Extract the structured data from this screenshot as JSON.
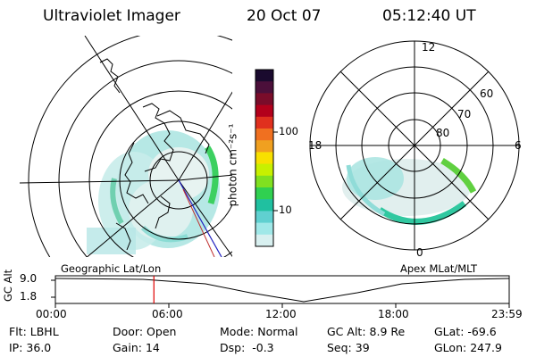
{
  "header": {
    "title": "Ultraviolet Imager",
    "date": "20 Oct 07",
    "time": "05:12:40 UT"
  },
  "colorbar": {
    "unit_label": "photon cm⁻²s⁻¹",
    "ticks": [
      "100",
      "10"
    ],
    "colors": [
      "#1a0a2e",
      "#4b0f3a",
      "#7a0c2a",
      "#b3001b",
      "#e0301e",
      "#f07020",
      "#f0a020",
      "#f8e000",
      "#c8f000",
      "#80e020",
      "#30d050",
      "#20c0a0",
      "#60d0d0",
      "#a0e8e8",
      "#d8f0f0"
    ]
  },
  "left_map": {
    "caption": "Geographic Lat/Lon",
    "ring_color": "#000000",
    "coast_color": "#000000",
    "track_color": "#2020c0"
  },
  "right_map": {
    "caption": "Apex MLat/MLT",
    "mlt_labels": {
      "top": "12",
      "left": "18",
      "right": "6",
      "bottom": "0"
    },
    "lat_labels": [
      "60",
      "70",
      "80"
    ]
  },
  "timeline": {
    "axis_label": "GC Alt",
    "y_ticks": [
      "9.0",
      "1.8"
    ],
    "x_ticks": [
      "00:00",
      "06:00",
      "12:00",
      "18:00",
      "23:59"
    ],
    "cursor_color": "#e00000",
    "cursor_time_hours": 5.21
  },
  "status": {
    "col1": [
      {
        "label": "Flt:",
        "value": "LBHL"
      },
      {
        "label": "IP:",
        "value": "36.0"
      }
    ],
    "col2": [
      {
        "label": "Door:",
        "value": "Open"
      },
      {
        "label": "Gain:",
        "value": "14"
      }
    ],
    "col3": [
      {
        "label": "Mode:",
        "value": "Normal"
      },
      {
        "label": "Dsp:",
        "value": "-0.3"
      }
    ],
    "col4": [
      {
        "label": "GC Alt:",
        "value": "8.9 Re"
      },
      {
        "label": "Seq:",
        "value": "39"
      }
    ],
    "col5": [
      {
        "label": "GLat:",
        "value": "-69.6"
      },
      {
        "label": "GLon:",
        "value": "247.9"
      }
    ]
  }
}
